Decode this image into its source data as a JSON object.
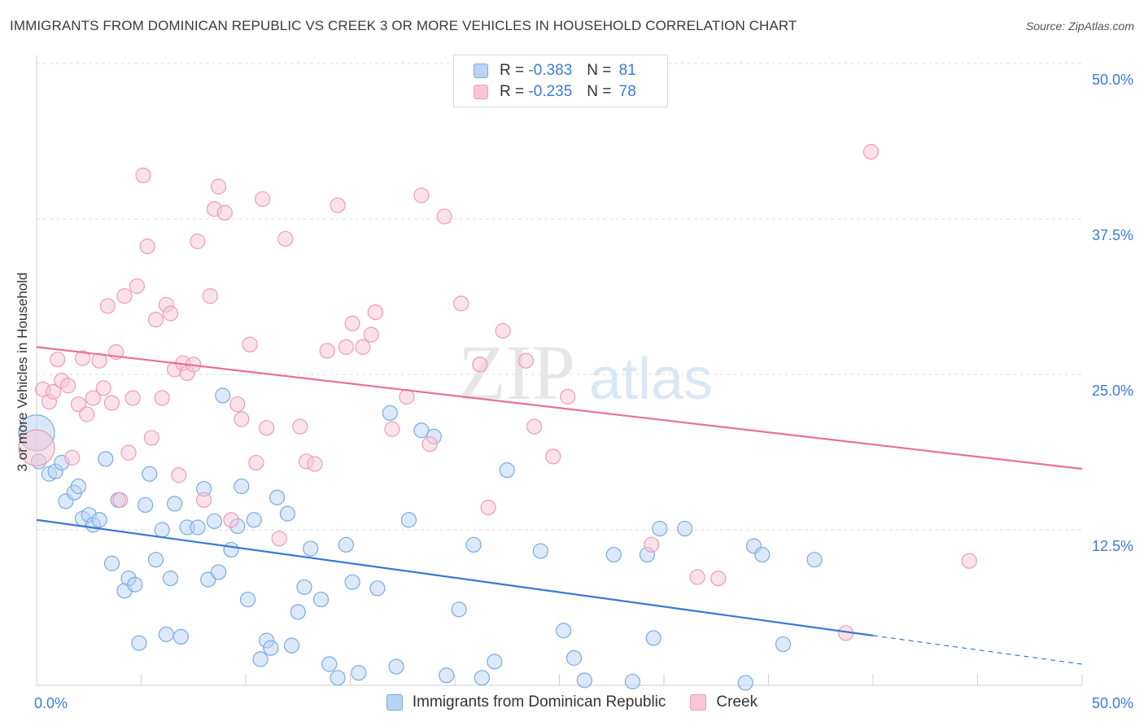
{
  "header": {
    "title": "IMMIGRANTS FROM DOMINICAN REPUBLIC VS CREEK 3 OR MORE VEHICLES IN HOUSEHOLD CORRELATION CHART",
    "source": "Source: ZipAtlas.com"
  },
  "watermark": {
    "zip": "ZIP",
    "atlas": "atlas"
  },
  "legend": {
    "rows": [
      {
        "r_label": "R =",
        "r_value": "-0.383",
        "n_label": "N =",
        "n_value": "81"
      },
      {
        "r_label": "R =",
        "r_value": "-0.235",
        "n_label": "N =",
        "n_value": "78"
      }
    ]
  },
  "chart_data": {
    "type": "scatter",
    "title": "IMMIGRANTS FROM DOMINICAN REPUBLIC VS CREEK 3 OR MORE VEHICLES IN HOUSEHOLD CORRELATION CHART",
    "xlabel": "",
    "ylabel": "3 or more Vehicles in Household",
    "xlim": [
      0,
      50
    ],
    "ylim": [
      0,
      50
    ],
    "x_tick_labels": [
      "0.0%",
      "50.0%"
    ],
    "y_ticks": [
      12.5,
      25.0,
      37.5,
      50.0
    ],
    "y_tick_labels": [
      "12.5%",
      "25.0%",
      "37.5%",
      "50.0%"
    ],
    "grid": true,
    "legend_position": "top-center",
    "colors": {
      "blue_fill": "#b9d3f5",
      "blue_stroke": "#7aaae6",
      "blue_line": "#3a78d4",
      "pink_fill": "#f8c6d6",
      "pink_stroke": "#ee9bb7",
      "pink_line": "#e8709a",
      "tick_label": "#3d7ad6",
      "grid": "#dedede"
    },
    "series": [
      {
        "name": "Immigrants from Dominican Republic",
        "color": "#b9d3f5",
        "r": -0.383,
        "n": 81,
        "trend": {
          "x0": 0,
          "y0": 13.3,
          "x1": 40,
          "y1": 4.0,
          "dash_x1": 50,
          "dash_y1": 1.7
        },
        "points": [
          [
            0.0,
            20.3,
            "big"
          ],
          [
            0.1,
            18.0
          ],
          [
            0.6,
            17.0
          ],
          [
            0.9,
            17.2
          ],
          [
            1.2,
            17.9
          ],
          [
            1.4,
            14.8
          ],
          [
            1.8,
            15.5
          ],
          [
            2.0,
            16.0
          ],
          [
            2.2,
            13.4
          ],
          [
            2.5,
            13.7
          ],
          [
            2.7,
            12.9
          ],
          [
            3.0,
            13.3
          ],
          [
            3.3,
            18.2
          ],
          [
            3.6,
            9.8
          ],
          [
            3.9,
            14.9
          ],
          [
            4.2,
            7.6
          ],
          [
            4.4,
            8.6
          ],
          [
            4.7,
            8.1
          ],
          [
            4.9,
            3.4
          ],
          [
            5.2,
            14.5
          ],
          [
            5.4,
            17.0
          ],
          [
            5.7,
            10.1
          ],
          [
            6.0,
            12.5
          ],
          [
            6.2,
            4.1
          ],
          [
            6.4,
            8.6
          ],
          [
            6.6,
            14.6
          ],
          [
            6.9,
            3.9
          ],
          [
            7.2,
            12.7
          ],
          [
            7.7,
            12.7
          ],
          [
            8.0,
            15.8
          ],
          [
            8.2,
            8.5
          ],
          [
            8.5,
            13.2
          ],
          [
            8.7,
            9.1
          ],
          [
            8.9,
            23.3
          ],
          [
            9.3,
            10.9
          ],
          [
            9.6,
            12.8
          ],
          [
            9.8,
            16.0
          ],
          [
            10.1,
            6.9
          ],
          [
            10.4,
            13.3
          ],
          [
            10.7,
            2.1
          ],
          [
            11.0,
            3.6
          ],
          [
            11.2,
            3.0
          ],
          [
            11.5,
            15.1
          ],
          [
            12.0,
            13.8
          ],
          [
            12.2,
            3.2
          ],
          [
            12.5,
            5.9
          ],
          [
            12.8,
            7.9
          ],
          [
            13.1,
            11.0
          ],
          [
            13.6,
            6.9
          ],
          [
            14.0,
            1.7
          ],
          [
            14.4,
            0.6
          ],
          [
            14.8,
            11.3
          ],
          [
            15.1,
            8.3
          ],
          [
            15.4,
            1.0
          ],
          [
            16.3,
            7.8
          ],
          [
            16.9,
            21.9
          ],
          [
            17.2,
            1.5
          ],
          [
            17.8,
            13.3
          ],
          [
            18.4,
            20.5
          ],
          [
            19.0,
            20.0
          ],
          [
            19.6,
            0.8
          ],
          [
            20.2,
            6.1
          ],
          [
            20.9,
            11.3
          ],
          [
            21.3,
            0.6
          ],
          [
            21.9,
            1.9
          ],
          [
            22.5,
            17.3
          ],
          [
            24.1,
            10.8
          ],
          [
            25.2,
            4.4
          ],
          [
            25.7,
            2.2
          ],
          [
            26.2,
            0.4
          ],
          [
            27.6,
            10.5
          ],
          [
            28.5,
            0.3
          ],
          [
            29.2,
            10.5
          ],
          [
            29.5,
            3.8
          ],
          [
            29.8,
            12.6
          ],
          [
            31.0,
            12.6
          ],
          [
            33.9,
            0.2
          ],
          [
            34.3,
            11.2
          ],
          [
            34.7,
            10.5
          ],
          [
            35.7,
            3.3
          ],
          [
            37.2,
            10.1
          ]
        ]
      },
      {
        "name": "Creek",
        "color": "#f8c6d6",
        "r": -0.235,
        "n": 78,
        "trend": {
          "x0": 0,
          "y0": 27.2,
          "x1": 50,
          "y1": 17.4
        },
        "points": [
          [
            0.0,
            19.1,
            "big"
          ],
          [
            0.3,
            23.8
          ],
          [
            0.6,
            22.8
          ],
          [
            0.8,
            23.6
          ],
          [
            1.0,
            26.2
          ],
          [
            1.2,
            24.5
          ],
          [
            1.5,
            24.1
          ],
          [
            1.7,
            18.3
          ],
          [
            2.0,
            22.6
          ],
          [
            2.2,
            26.3
          ],
          [
            2.4,
            21.8
          ],
          [
            2.7,
            23.1
          ],
          [
            3.0,
            26.1
          ],
          [
            3.2,
            23.9
          ],
          [
            3.4,
            30.5
          ],
          [
            3.6,
            22.7
          ],
          [
            3.8,
            26.8
          ],
          [
            4.0,
            14.9
          ],
          [
            4.2,
            31.3
          ],
          [
            4.4,
            18.7
          ],
          [
            4.6,
            23.1
          ],
          [
            4.8,
            32.1
          ],
          [
            5.1,
            41.0
          ],
          [
            5.3,
            35.3
          ],
          [
            5.5,
            19.9
          ],
          [
            5.7,
            29.4
          ],
          [
            6.0,
            23.1
          ],
          [
            6.2,
            30.6
          ],
          [
            6.4,
            29.9
          ],
          [
            6.6,
            25.4
          ],
          [
            6.8,
            16.9
          ],
          [
            7.0,
            25.9
          ],
          [
            7.2,
            25.1
          ],
          [
            7.5,
            25.8
          ],
          [
            7.7,
            35.7
          ],
          [
            8.0,
            14.9
          ],
          [
            8.3,
            31.3
          ],
          [
            8.5,
            38.3
          ],
          [
            8.7,
            40.1
          ],
          [
            9.0,
            38.0
          ],
          [
            9.3,
            13.3
          ],
          [
            9.6,
            22.6
          ],
          [
            9.8,
            21.4
          ],
          [
            10.2,
            27.4
          ],
          [
            10.5,
            17.9
          ],
          [
            10.8,
            39.1
          ],
          [
            11.0,
            20.7
          ],
          [
            11.6,
            11.8
          ],
          [
            11.9,
            35.9
          ],
          [
            12.6,
            20.8
          ],
          [
            12.9,
            18.0
          ],
          [
            13.3,
            17.8
          ],
          [
            13.9,
            26.9
          ],
          [
            14.4,
            38.6
          ],
          [
            14.8,
            27.2
          ],
          [
            15.1,
            29.1
          ],
          [
            15.6,
            27.2
          ],
          [
            16.0,
            28.2
          ],
          [
            16.2,
            30.0
          ],
          [
            17.0,
            20.6
          ],
          [
            17.7,
            23.2
          ],
          [
            18.4,
            39.4
          ],
          [
            18.8,
            19.4
          ],
          [
            19.5,
            37.7
          ],
          [
            20.3,
            30.7
          ],
          [
            21.2,
            25.8
          ],
          [
            21.6,
            14.3
          ],
          [
            22.3,
            28.5
          ],
          [
            23.4,
            26.1
          ],
          [
            23.8,
            20.8
          ],
          [
            24.7,
            18.4
          ],
          [
            25.4,
            23.2
          ],
          [
            29.4,
            11.3
          ],
          [
            31.6,
            8.7
          ],
          [
            32.6,
            8.6
          ],
          [
            38.7,
            4.2
          ],
          [
            39.9,
            42.9
          ],
          [
            44.6,
            10.0
          ]
        ]
      }
    ]
  },
  "bottom_legend": {
    "items": [
      {
        "label": "Immigrants from Dominican Republic"
      },
      {
        "label": "Creek"
      }
    ]
  }
}
